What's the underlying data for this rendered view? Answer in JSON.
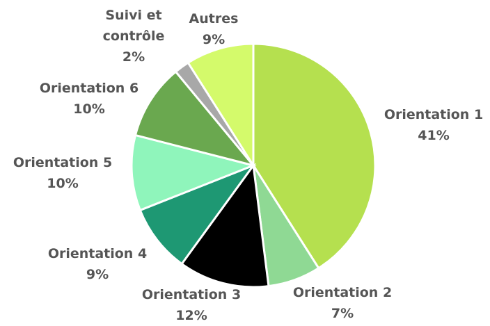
{
  "chart_data": {
    "type": "pie",
    "categories": [
      "Orientation 1",
      "Orientation 2",
      "Orientation 3",
      "Orientation 4",
      "Orientation 5",
      "Orientation 6",
      "Suivi et contrôle",
      "Autres"
    ],
    "values": [
      41,
      7,
      12,
      9,
      10,
      10,
      2,
      9
    ],
    "value_labels": [
      "41%",
      "7%",
      "12%",
      "9%",
      "10%",
      "10%",
      "2%",
      "9%"
    ],
    "colors": [
      "#b5e04f",
      "#8fd994",
      "#000000",
      "#1e9873",
      "#8ff5bb",
      "#6aa84f",
      "#a8a8a8",
      "#d4fa6b"
    ]
  }
}
